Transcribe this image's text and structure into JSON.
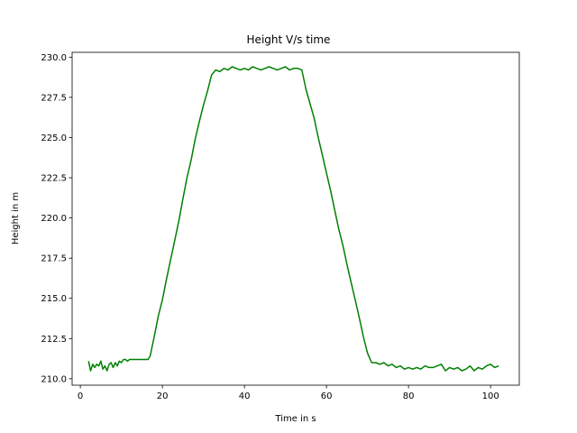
{
  "chart_data": {
    "type": "line",
    "title": "Height V/s time",
    "xlabel": "Time in s",
    "ylabel": "Height in m",
    "xlim": [
      -2.0,
      107.0
    ],
    "ylim": [
      209.6,
      230.3
    ],
    "xticks": [
      0,
      20,
      40,
      60,
      80,
      100
    ],
    "xtick_labels": [
      "0",
      "20",
      "40",
      "60",
      "80",
      "100"
    ],
    "yticks": [
      210.0,
      212.5,
      215.0,
      217.5,
      220.0,
      222.5,
      225.0,
      227.5,
      230.0
    ],
    "ytick_labels": [
      "210.0",
      "212.5",
      "215.0",
      "217.5",
      "220.0",
      "222.5",
      "225.0",
      "227.5",
      "230.0"
    ],
    "grid": false,
    "legend": "none",
    "series": [
      {
        "color": "#008000",
        "x": [
          2.0,
          2.5,
          3.0,
          3.5,
          4.0,
          4.5,
          5.0,
          5.5,
          6.0,
          6.5,
          7.0,
          7.5,
          8.0,
          8.5,
          9.0,
          9.5,
          10.0,
          10.5,
          11.0,
          11.5,
          12.0,
          12.5,
          13.0,
          14.0,
          15.0,
          16.0,
          16.5,
          17.0,
          18.0,
          19.0,
          20.0,
          21.0,
          22.0,
          23.0,
          24.0,
          25.0,
          26.0,
          27.0,
          28.0,
          29.0,
          30.0,
          31.0,
          32.0,
          33.0,
          34.0,
          35.0,
          36.0,
          37.0,
          38.0,
          39.0,
          40.0,
          41.0,
          42.0,
          43.0,
          44.0,
          45.0,
          46.0,
          47.0,
          48.0,
          49.0,
          50.0,
          51.0,
          52.0,
          53.0,
          54.0,
          55.0,
          56.0,
          57.0,
          58.0,
          59.0,
          60.0,
          61.0,
          62.0,
          63.0,
          64.0,
          65.0,
          66.0,
          67.0,
          68.0,
          69.0,
          70.0,
          71.0,
          72.0,
          73.0,
          74.0,
          75.0,
          76.0,
          77.0,
          78.0,
          79.0,
          80.0,
          81.0,
          82.0,
          83.0,
          84.0,
          85.0,
          86.0,
          87.0,
          88.0,
          89.0,
          90.0,
          91.0,
          92.0,
          93.0,
          94.0,
          95.0,
          96.0,
          97.0,
          98.0,
          99.0,
          100.0,
          101.0,
          102.0
        ],
        "y": [
          211.1,
          210.5,
          210.9,
          210.7,
          210.9,
          210.8,
          211.1,
          210.6,
          210.8,
          210.5,
          210.9,
          211.0,
          210.7,
          211.0,
          210.8,
          211.1,
          211.0,
          211.2,
          211.2,
          211.1,
          211.2,
          211.2,
          211.2,
          211.2,
          211.2,
          211.2,
          211.2,
          211.4,
          212.6,
          213.9,
          214.9,
          216.2,
          217.4,
          218.6,
          219.8,
          221.2,
          222.5,
          223.6,
          224.9,
          226.0,
          227.0,
          227.9,
          228.9,
          229.2,
          229.1,
          229.3,
          229.2,
          229.4,
          229.3,
          229.2,
          229.3,
          229.2,
          229.4,
          229.3,
          229.2,
          229.3,
          229.4,
          229.3,
          229.2,
          229.3,
          229.4,
          229.2,
          229.3,
          229.3,
          229.2,
          228.0,
          227.1,
          226.2,
          225.0,
          223.9,
          222.8,
          221.7,
          220.5,
          219.3,
          218.3,
          217.1,
          216.0,
          214.9,
          213.8,
          212.6,
          211.6,
          211.0,
          211.0,
          210.9,
          211.0,
          210.8,
          210.9,
          210.7,
          210.8,
          210.6,
          210.7,
          210.6,
          210.7,
          210.6,
          210.8,
          210.7,
          210.7,
          210.8,
          210.9,
          210.5,
          210.7,
          210.6,
          210.7,
          210.5,
          210.6,
          210.8,
          210.5,
          210.7,
          210.6,
          210.8,
          210.9,
          210.7,
          210.8
        ]
      }
    ]
  }
}
